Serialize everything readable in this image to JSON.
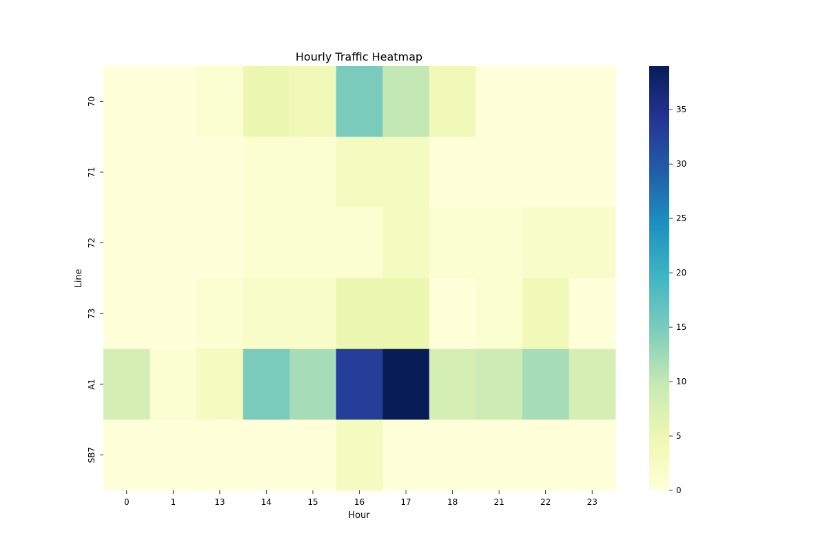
{
  "chart_data": {
    "type": "heatmap",
    "title": "Hourly Traffic Heatmap",
    "xlabel": "Hour",
    "ylabel": "Line",
    "x": [
      "0",
      "1",
      "13",
      "14",
      "15",
      "16",
      "17",
      "18",
      "21",
      "22",
      "23"
    ],
    "y": [
      "70",
      "71",
      "72",
      "73",
      "A1",
      "SB7"
    ],
    "values": [
      [
        0,
        0,
        1,
        5,
        4,
        15,
        10,
        4,
        0,
        0,
        0
      ],
      [
        0,
        0,
        0,
        1,
        1,
        3,
        3,
        0,
        0,
        0,
        0
      ],
      [
        0,
        0,
        0,
        1,
        1,
        1,
        3,
        1,
        1,
        2,
        2
      ],
      [
        0,
        0,
        1,
        2,
        2,
        5,
        5,
        0,
        1,
        4,
        0
      ],
      [
        8,
        1,
        3,
        15,
        12,
        33,
        39,
        8,
        9,
        12,
        8
      ],
      [
        0,
        0,
        0,
        0,
        0,
        3,
        0,
        0,
        0,
        0,
        0
      ]
    ],
    "colorbar": {
      "min": 0,
      "max": 39,
      "ticks": [
        0,
        5,
        10,
        15,
        20,
        25,
        30,
        35
      ],
      "colormap": "YlGnBu"
    }
  }
}
